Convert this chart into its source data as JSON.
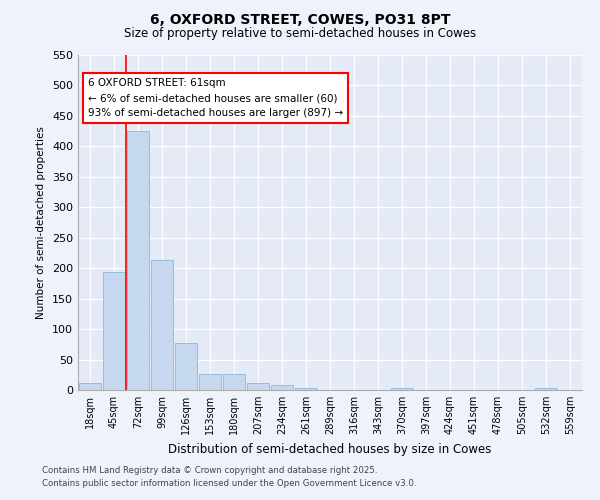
{
  "title": "6, OXFORD STREET, COWES, PO31 8PT",
  "subtitle": "Size of property relative to semi-detached houses in Cowes",
  "xlabel": "Distribution of semi-detached houses by size in Cowes",
  "ylabel": "Number of semi-detached properties",
  "categories": [
    "18sqm",
    "45sqm",
    "72sqm",
    "99sqm",
    "126sqm",
    "153sqm",
    "180sqm",
    "207sqm",
    "234sqm",
    "261sqm",
    "289sqm",
    "316sqm",
    "343sqm",
    "370sqm",
    "397sqm",
    "424sqm",
    "451sqm",
    "478sqm",
    "505sqm",
    "532sqm",
    "559sqm"
  ],
  "values": [
    12,
    193,
    425,
    213,
    77,
    27,
    27,
    11,
    9,
    3,
    0,
    0,
    0,
    3,
    0,
    0,
    0,
    0,
    0,
    3,
    0
  ],
  "bar_color": "#c5d8f0",
  "bar_edge_color": "#7bafd4",
  "vline_x_idx": 1.5,
  "vline_color": "red",
  "annotation_title": "6 OXFORD STREET: 61sqm",
  "annotation_line1": "← 6% of semi-detached houses are smaller (60)",
  "annotation_line2": "93% of semi-detached houses are larger (897) →",
  "ylim": [
    0,
    550
  ],
  "yticks": [
    0,
    50,
    100,
    150,
    200,
    250,
    300,
    350,
    400,
    450,
    500,
    550
  ],
  "footer1": "Contains HM Land Registry data © Crown copyright and database right 2025.",
  "footer2": "Contains public sector information licensed under the Open Government Licence v3.0.",
  "bg_color": "#eef2fa",
  "plot_bg_color": "#e4ebf7"
}
